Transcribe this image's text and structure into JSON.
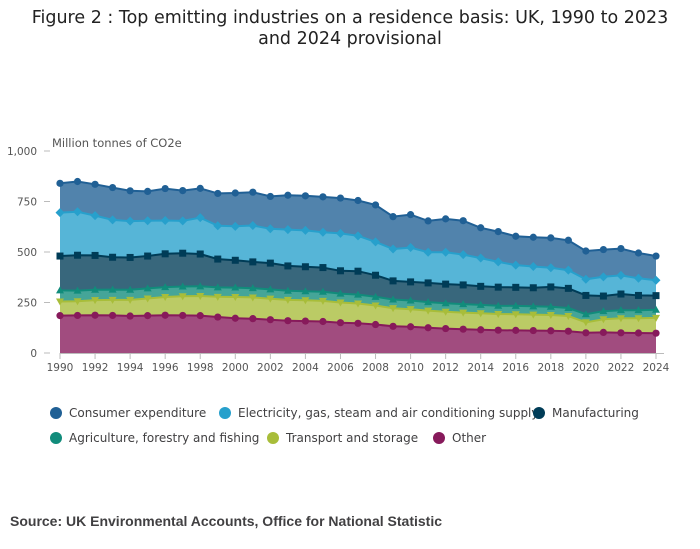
{
  "title": "Figure 2 : Top emitting industries on a residence basis: UK, 1990 to 2023 and 2024 provisional",
  "source": "Source: UK Environmental Accounts, Office for National Statistic",
  "chart_data": {
    "type": "area",
    "stacked": true,
    "title": "Figure 2 : Top emitting industries on a residence basis: UK, 1990 to 2023 and 2024 provisional",
    "ylabel": "Million tonnes of CO2e",
    "xlabel": "",
    "ylim": [
      0,
      1000
    ],
    "yticks": [
      0,
      250,
      500,
      750,
      1000
    ],
    "ytick_labels": [
      "0",
      "250",
      "500",
      "750",
      "1,000"
    ],
    "xticks": [
      1990,
      1992,
      1994,
      1996,
      1998,
      2000,
      2002,
      2004,
      2006,
      2008,
      2010,
      2012,
      2014,
      2016,
      2018,
      2020,
      2022,
      2024
    ],
    "x": [
      1990,
      1991,
      1992,
      1993,
      1994,
      1995,
      1996,
      1997,
      1998,
      1999,
      2000,
      2001,
      2002,
      2003,
      2004,
      2005,
      2006,
      2007,
      2008,
      2009,
      2010,
      2011,
      2012,
      2013,
      2014,
      2015,
      2016,
      2017,
      2018,
      2019,
      2020,
      2021,
      2022,
      2023,
      2024
    ],
    "grid": false,
    "legend_position": "bottom",
    "series": [
      {
        "name": "Other",
        "color": "#871a5b",
        "marker": "circle",
        "values": [
          185,
          186,
          187,
          186,
          183,
          185,
          187,
          186,
          185,
          178,
          172,
          170,
          165,
          160,
          158,
          156,
          150,
          147,
          141,
          132,
          130,
          125,
          121,
          118,
          115,
          113,
          112,
          111,
          110,
          108,
          100,
          102,
          100,
          99,
          98
        ]
      },
      {
        "name": "Transport and storage",
        "color": "#a8bd3a",
        "marker": "triangle",
        "values": [
          70,
          70,
          75,
          77,
          80,
          85,
          90,
          95,
          97,
          100,
          105,
          105,
          104,
          103,
          103,
          102,
          100,
          98,
          94,
          90,
          87,
          85,
          83,
          82,
          82,
          80,
          80,
          79,
          78,
          75,
          52,
          65,
          72,
          73,
          76
        ]
      },
      {
        "name": "Agriculture, forestry and fishing",
        "color": "#118c7b",
        "marker": "triangle-up",
        "values": [
          55,
          53,
          51,
          51,
          50,
          50,
          49,
          48,
          48,
          47,
          47,
          46,
          46,
          45,
          45,
          45,
          44,
          44,
          43,
          43,
          43,
          42,
          42,
          42,
          41,
          41,
          41,
          41,
          41,
          40,
          40,
          40,
          40,
          40,
          40
        ]
      },
      {
        "name": "Manufacturing",
        "color": "#003c57",
        "marker": "square",
        "values": [
          170,
          175,
          170,
          160,
          160,
          160,
          165,
          165,
          160,
          140,
          135,
          130,
          130,
          123,
          121,
          120,
          113,
          116,
          107,
          92,
          92,
          95,
          95,
          95,
          92,
          92,
          92,
          92,
          98,
          97,
          93,
          75,
          80,
          73,
          70
        ]
      },
      {
        "name": "Electricity, gas, steam and air conditioning supply",
        "color": "#27a0cc",
        "marker": "diamond",
        "values": [
          215,
          215,
          197,
          185,
          180,
          175,
          165,
          160,
          180,
          165,
          168,
          180,
          170,
          180,
          180,
          175,
          185,
          175,
          165,
          158,
          170,
          152,
          158,
          150,
          140,
          125,
          110,
          105,
          95,
          90,
          80,
          95,
          92,
          85,
          76
        ]
      },
      {
        "name": "Consumer expenditure",
        "color": "#206095",
        "marker": "circle",
        "values": [
          145,
          150,
          155,
          160,
          150,
          145,
          158,
          150,
          145,
          160,
          165,
          165,
          160,
          170,
          171,
          175,
          175,
          175,
          183,
          160,
          163,
          155,
          165,
          168,
          150,
          150,
          143,
          145,
          148,
          148,
          140,
          135,
          133,
          125,
          120
        ]
      }
    ]
  },
  "legend_rows": [
    [
      {
        "label": "Consumer expenditure",
        "color": "#206095"
      },
      {
        "label": "Electricity, gas, steam and air conditioning supply",
        "color": "#27a0cc"
      },
      {
        "label": "Manufacturing",
        "color": "#003c57"
      }
    ],
    [
      {
        "label": "Agriculture, forestry and fishing",
        "color": "#118c7b"
      },
      {
        "label": "Transport and storage",
        "color": "#a8bd3a"
      },
      {
        "label": "Other",
        "color": "#871a5b"
      }
    ]
  ]
}
